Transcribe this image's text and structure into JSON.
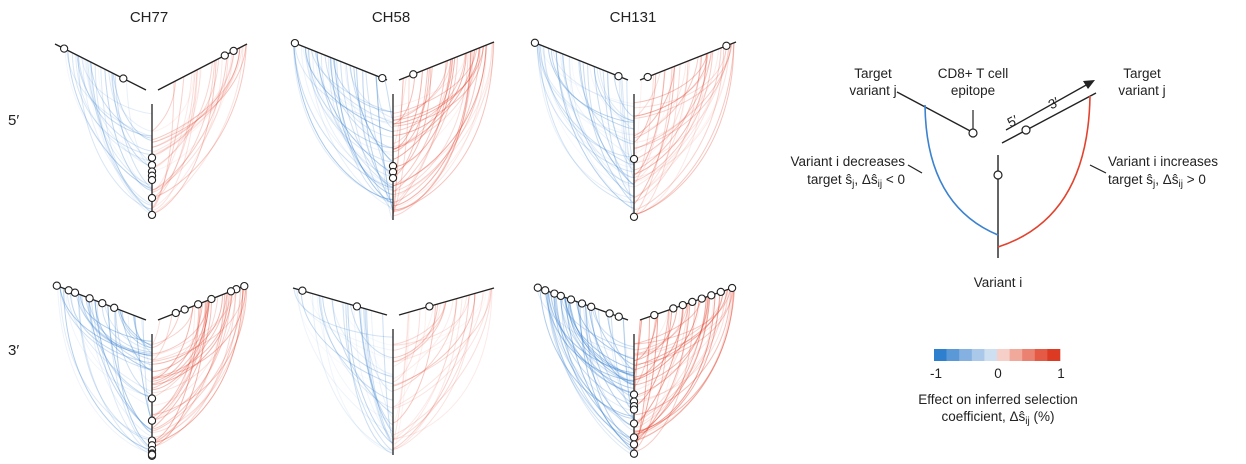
{
  "columns": [
    "CH77",
    "CH58",
    "CH131"
  ],
  "rows": [
    "5′",
    "3′"
  ],
  "legend": {
    "target_left": [
      "Target",
      "variant j"
    ],
    "epitope": [
      "CD8+ T cell",
      "epitope"
    ],
    "target_right": [
      "Target",
      "variant j"
    ],
    "three_prime": "3′",
    "five_prime": "5′",
    "decreases": [
      "Variant i decreases",
      "target ŝ",
      "j",
      ", Δŝ",
      "ij",
      " < 0"
    ],
    "increases": [
      "Variant i increases",
      "target ŝ",
      "j",
      ", Δŝ",
      "ij",
      " > 0"
    ],
    "variant_i": "Variant i"
  },
  "colorbar": {
    "min_label": "-1",
    "zero_label": "0",
    "max_label": "1",
    "title": [
      "Effect on inferred selection",
      "coefficient, Δŝ",
      "ij",
      " (%)"
    ],
    "neg_colors": [
      "#2f7fcf",
      "#5a98d8",
      "#84b1e1",
      "#a9c8ea",
      "#cfdff2"
    ],
    "pos_colors": [
      "#f6cfc8",
      "#f1a99c",
      "#eb8170",
      "#e45a45",
      "#dc3a22"
    ]
  },
  "colors": {
    "negative": "#3b82d0",
    "positive": "#e2432e",
    "line": "#222222"
  }
}
